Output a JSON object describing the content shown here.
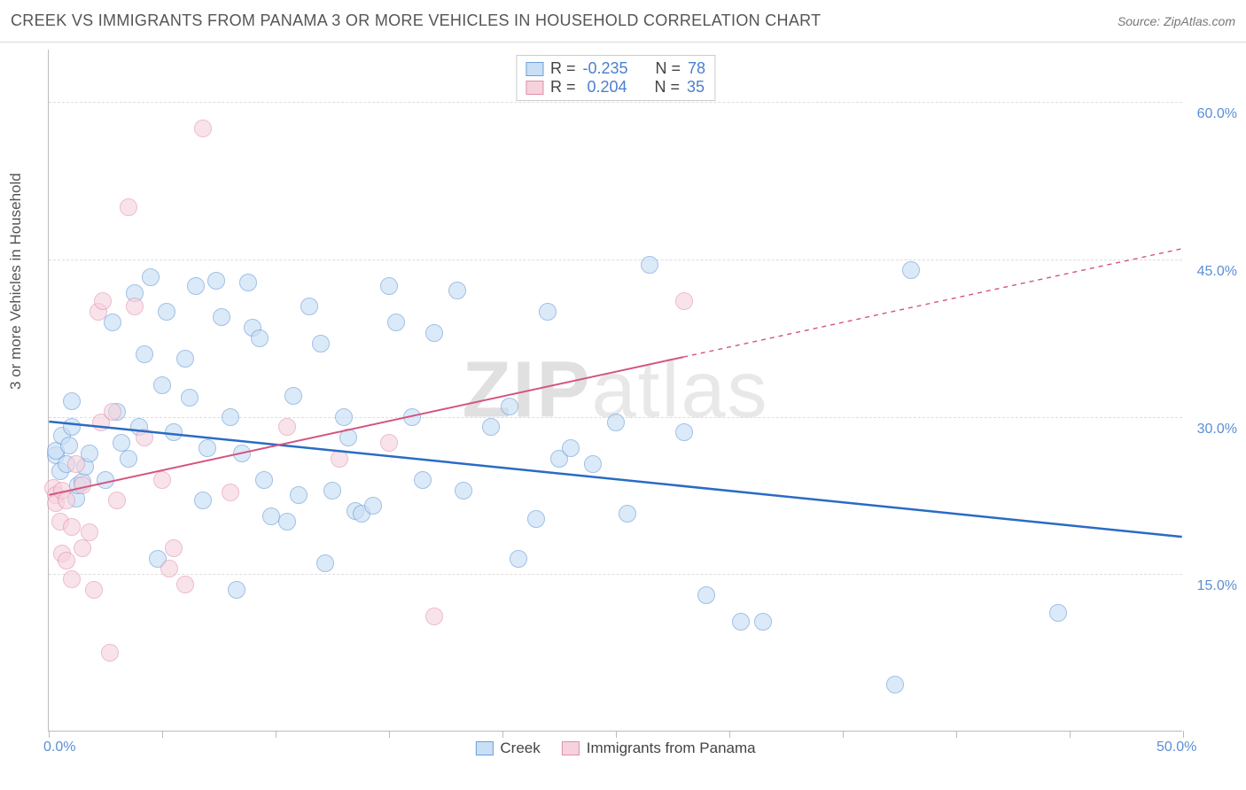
{
  "header": {
    "title": "CREEK VS IMMIGRANTS FROM PANAMA 3 OR MORE VEHICLES IN HOUSEHOLD CORRELATION CHART",
    "source_label": "Source: ",
    "source_value": "ZipAtlas.com"
  },
  "chart": {
    "type": "scatter",
    "watermark": "ZIPatlas",
    "ylabel": "3 or more Vehicles in Household",
    "xlim": [
      0,
      50
    ],
    "ylim": [
      0,
      65
    ],
    "x_ticks_at": [
      0,
      5,
      10,
      15,
      20,
      25,
      30,
      35,
      40,
      45,
      50
    ],
    "x_tick_labels": {
      "0": "0.0%",
      "50": "50.0%"
    },
    "y_gridlines": [
      15,
      30,
      45,
      60
    ],
    "y_tick_labels": {
      "15": "15.0%",
      "30": "30.0%",
      "45": "45.0%",
      "60": "60.0%"
    },
    "background_color": "#ffffff",
    "grid_color": "#dddddd",
    "axis_color": "#bbbbbb",
    "axis_label_color": "#5b8fd6",
    "marker_radius": 10,
    "marker_border_width": 1.5,
    "series": [
      {
        "name": "Creek",
        "fill": "#c9dff5",
        "stroke": "#6f9fd8",
        "fill_opacity": 0.65,
        "R": "-0.235",
        "N": "78",
        "trend": {
          "color": "#2a6bc4",
          "width": 2.5,
          "x1": 0,
          "y1": 29.5,
          "x2": 50,
          "y2": 18.5,
          "solid_until_x": 50
        },
        "points": [
          [
            0.3,
            26.3
          ],
          [
            0.3,
            26.8
          ],
          [
            0.5,
            24.8
          ],
          [
            0.6,
            28.2
          ],
          [
            0.8,
            25.5
          ],
          [
            0.9,
            27.3
          ],
          [
            1.0,
            29.0
          ],
          [
            1.2,
            22.2
          ],
          [
            1.3,
            23.5
          ],
          [
            1.5,
            23.8
          ],
          [
            1.6,
            25.2
          ],
          [
            1.8,
            26.5
          ],
          [
            2.5,
            24.0
          ],
          [
            3.0,
            30.5
          ],
          [
            3.2,
            27.5
          ],
          [
            3.5,
            26.0
          ],
          [
            3.8,
            41.8
          ],
          [
            4.0,
            29.0
          ],
          [
            4.2,
            36.0
          ],
          [
            4.5,
            43.3
          ],
          [
            4.8,
            16.5
          ],
          [
            5.0,
            33.0
          ],
          [
            5.2,
            40.0
          ],
          [
            5.5,
            28.5
          ],
          [
            6.0,
            35.5
          ],
          [
            6.2,
            31.8
          ],
          [
            6.5,
            42.5
          ],
          [
            7.0,
            27.0
          ],
          [
            7.4,
            43.0
          ],
          [
            7.6,
            39.5
          ],
          [
            8.0,
            30.0
          ],
          [
            8.3,
            13.5
          ],
          [
            8.5,
            26.5
          ],
          [
            8.8,
            42.8
          ],
          [
            9.0,
            38.5
          ],
          [
            9.3,
            37.5
          ],
          [
            9.5,
            24.0
          ],
          [
            9.8,
            20.5
          ],
          [
            10.5,
            20.0
          ],
          [
            10.8,
            32.0
          ],
          [
            11.0,
            22.5
          ],
          [
            12.0,
            37.0
          ],
          [
            12.2,
            16.0
          ],
          [
            12.5,
            23.0
          ],
          [
            13.0,
            30.0
          ],
          [
            13.2,
            28.0
          ],
          [
            13.5,
            21.0
          ],
          [
            13.8,
            20.8
          ],
          [
            14.3,
            21.5
          ],
          [
            15.0,
            42.5
          ],
          [
            15.3,
            39.0
          ],
          [
            16.0,
            30.0
          ],
          [
            16.5,
            24.0
          ],
          [
            17.0,
            38.0
          ],
          [
            18.0,
            42.0
          ],
          [
            18.3,
            23.0
          ],
          [
            19.5,
            29.0
          ],
          [
            20.3,
            31.0
          ],
          [
            20.7,
            16.5
          ],
          [
            21.5,
            20.3
          ],
          [
            22.0,
            40.0
          ],
          [
            22.5,
            26.0
          ],
          [
            23.0,
            27.0
          ],
          [
            24.0,
            25.5
          ],
          [
            25.0,
            29.5
          ],
          [
            25.5,
            20.8
          ],
          [
            26.5,
            44.5
          ],
          [
            28.0,
            28.5
          ],
          [
            29.0,
            13.0
          ],
          [
            30.5,
            10.5
          ],
          [
            31.5,
            10.5
          ],
          [
            37.3,
            4.5
          ],
          [
            38.0,
            44.0
          ],
          [
            44.5,
            11.3
          ],
          [
            1.0,
            31.5
          ],
          [
            2.8,
            39.0
          ],
          [
            6.8,
            22.0
          ],
          [
            11.5,
            40.5
          ]
        ]
      },
      {
        "name": "Immigrants from Panama",
        "fill": "#f6d2dd",
        "stroke": "#e090ab",
        "fill_opacity": 0.6,
        "R": " 0.204",
        "N": "35",
        "trend": {
          "color": "#d4547e",
          "width": 2,
          "x1": 0,
          "y1": 22.5,
          "x2": 50,
          "y2": 46.0,
          "solid_until_x": 28
        },
        "points": [
          [
            0.2,
            23.2
          ],
          [
            0.3,
            22.5
          ],
          [
            0.3,
            21.8
          ],
          [
            0.5,
            20.0
          ],
          [
            0.6,
            23.0
          ],
          [
            0.6,
            17.0
          ],
          [
            0.8,
            16.3
          ],
          [
            0.8,
            22.0
          ],
          [
            1.0,
            19.5
          ],
          [
            1.0,
            14.5
          ],
          [
            1.2,
            25.5
          ],
          [
            1.5,
            23.5
          ],
          [
            1.5,
            17.5
          ],
          [
            1.8,
            19.0
          ],
          [
            2.0,
            13.5
          ],
          [
            2.2,
            40.0
          ],
          [
            2.3,
            29.5
          ],
          [
            2.4,
            41.0
          ],
          [
            2.7,
            7.5
          ],
          [
            2.8,
            30.5
          ],
          [
            3.0,
            22.0
          ],
          [
            3.5,
            50.0
          ],
          [
            3.8,
            40.5
          ],
          [
            4.2,
            28.0
          ],
          [
            5.0,
            24.0
          ],
          [
            5.3,
            15.5
          ],
          [
            5.5,
            17.5
          ],
          [
            6.0,
            14.0
          ],
          [
            6.8,
            57.5
          ],
          [
            8.0,
            22.8
          ],
          [
            10.5,
            29.0
          ],
          [
            12.8,
            26.0
          ],
          [
            15.0,
            27.5
          ],
          [
            17.0,
            11.0
          ],
          [
            28.0,
            41.0
          ]
        ]
      }
    ],
    "legend_top": {
      "R_label": "R =",
      "N_label": "N ="
    },
    "legend_bottom": {
      "items": [
        "Creek",
        "Immigrants from Panama"
      ]
    }
  }
}
